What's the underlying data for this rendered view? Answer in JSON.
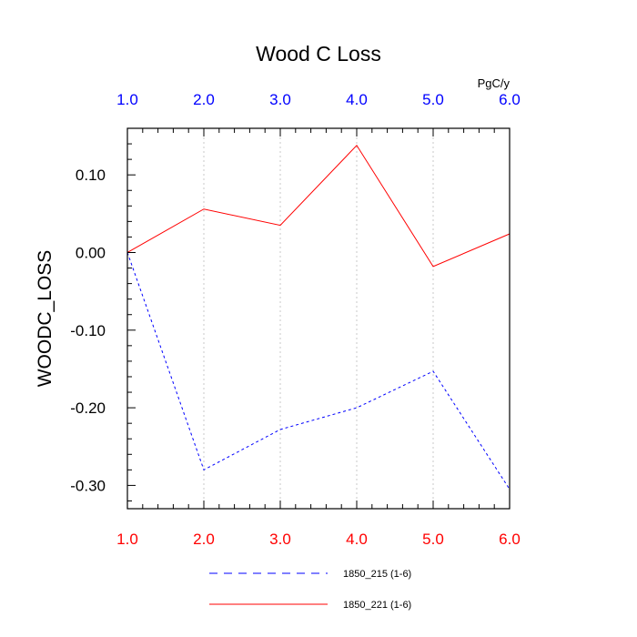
{
  "chart_data": {
    "type": "line",
    "title": "Wood C Loss",
    "units": "PgC/y",
    "xlabel": "",
    "ylabel": "WOODC_LOSS",
    "x": [
      1.0,
      2.0,
      3.0,
      4.0,
      5.0,
      6.0
    ],
    "xlim": [
      1.0,
      6.0
    ],
    "ylim": [
      -0.33,
      0.16
    ],
    "x_ticks": [
      1.0,
      2.0,
      3.0,
      4.0,
      5.0,
      6.0
    ],
    "x_tick_labels": [
      "1.0",
      "2.0",
      "3.0",
      "4.0",
      "5.0",
      "6.0"
    ],
    "y_ticks": [
      -0.3,
      -0.2,
      -0.1,
      0.0,
      0.1
    ],
    "y_tick_labels": [
      "-0.30",
      "-0.20",
      "-0.10",
      "0.00",
      "0.10"
    ],
    "grid": "vertical dotted lines at major x ticks",
    "legend_placement": "bottom",
    "series": [
      {
        "name": "1850_215 (1-6)",
        "color": "#0000ff",
        "dash": "dashed",
        "values": [
          0.0,
          -0.28,
          -0.228,
          -0.2,
          -0.153,
          -0.305
        ]
      },
      {
        "name": "1850_221 (1-6)",
        "color": "#ff0000",
        "dash": "solid",
        "values": [
          0.0,
          0.056,
          0.035,
          0.138,
          -0.018,
          0.024
        ]
      }
    ],
    "colors": {
      "top_tick_labels": "#0000ff",
      "bottom_tick_labels": "#ff0000",
      "grid": "#c8c8c8",
      "axis": "#000000"
    }
  }
}
